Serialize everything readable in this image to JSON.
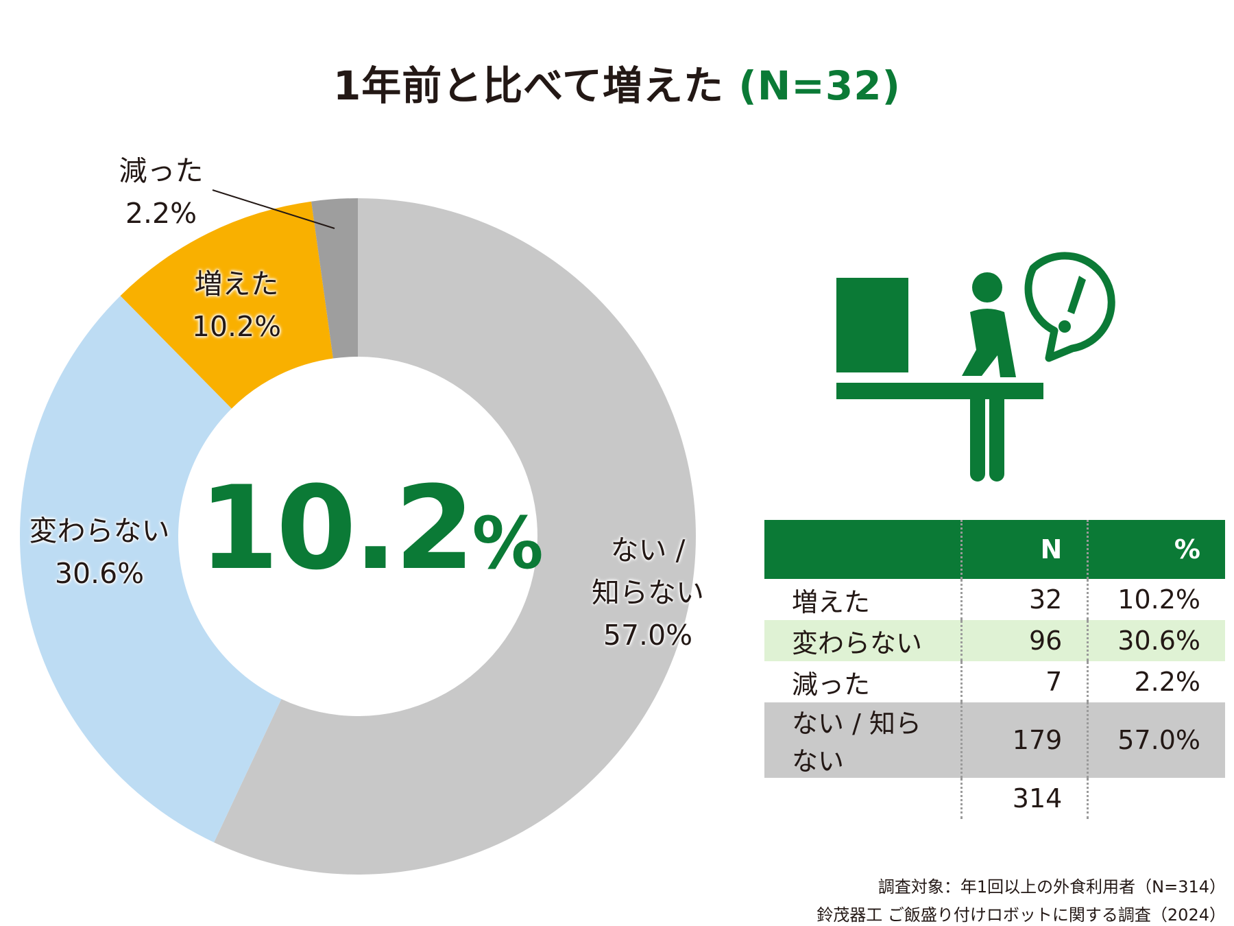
{
  "title": {
    "main": "1年前と比べて増えた",
    "n": "(N=32)"
  },
  "colors": {
    "accent_green": "#0b7a36",
    "slice_none": "#c8c8c8",
    "slice_increased": "#f9b000",
    "slice_unchanged": "#bddcf3",
    "slice_decreased": "#9e9e9e"
  },
  "center": {
    "value": "10.2",
    "unit": "%"
  },
  "chart_data": {
    "type": "pie",
    "title": "1年前と比べて増えた (N=32)",
    "slices": [
      {
        "name": "ない / 知らない",
        "value": 57.0,
        "color": "#c8c8c8",
        "label_lines": [
          "ない /",
          "知らない",
          "57.0%"
        ]
      },
      {
        "name": "変わらない",
        "value": 30.6,
        "color": "#bddcf3",
        "label_lines": [
          "変わらない",
          "30.6%"
        ]
      },
      {
        "name": "増えた",
        "value": 10.2,
        "color": "#f9b000",
        "label_lines": [
          "増えた",
          "10.2%"
        ]
      },
      {
        "name": "減った",
        "value": 2.2,
        "color": "#9e9e9e",
        "label_lines": [
          "減った",
          "2.2%"
        ]
      }
    ],
    "donut": true
  },
  "icon": {
    "name": "person-at-counter-exclamation-icon"
  },
  "table": {
    "headers": [
      "",
      "N",
      "%"
    ],
    "rows": [
      {
        "label": "増えた",
        "n": "32",
        "pct": "10.2%"
      },
      {
        "label": "変わらない",
        "n": "96",
        "pct": "30.6%"
      },
      {
        "label": "減った",
        "n": "7",
        "pct": "2.2%"
      },
      {
        "label": "ない / 知らない",
        "n": "179",
        "pct": "57.0%"
      }
    ],
    "total": "314"
  },
  "footnotes": {
    "target": "調査対象：年1回以上の外食利用者（N=314）",
    "source": "鈴茂器工 ご飯盛り付けロボットに関する調査（2024）"
  }
}
